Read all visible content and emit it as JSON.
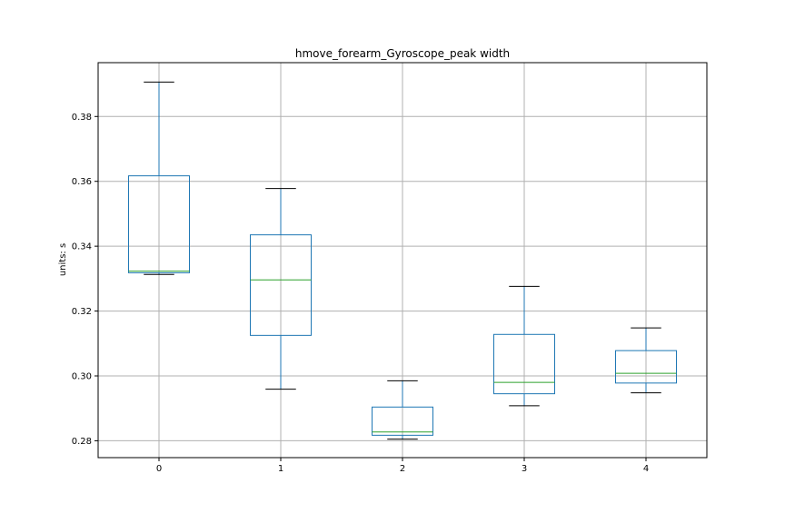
{
  "chart_data": {
    "type": "box",
    "title": "hmove_forearm_Gyroscope_peak width",
    "xlabel": "",
    "ylabel": "units: s",
    "categories": [
      "0",
      "1",
      "2",
      "3",
      "4"
    ],
    "yticks": [
      "0.28",
      "0.30",
      "0.32",
      "0.34",
      "0.36",
      "0.38"
    ],
    "ylim": [
      0.2748,
      0.3966
    ],
    "grid": true,
    "boxes": [
      {
        "category": "0",
        "whisker_low": 0.3313,
        "q1": 0.3318,
        "median": 0.3323,
        "q3": 0.3617,
        "whisker_high": 0.3906
      },
      {
        "category": "1",
        "whisker_low": 0.2959,
        "q1": 0.3125,
        "median": 0.3296,
        "q3": 0.3435,
        "whisker_high": 0.3578
      },
      {
        "category": "2",
        "whisker_low": 0.2805,
        "q1": 0.2817,
        "median": 0.2827,
        "q3": 0.2904,
        "whisker_high": 0.2985
      },
      {
        "category": "3",
        "whisker_low": 0.2908,
        "q1": 0.2945,
        "median": 0.298,
        "q3": 0.3128,
        "whisker_high": 0.3276
      },
      {
        "category": "4",
        "whisker_low": 0.2948,
        "q1": 0.2978,
        "median": 0.3008,
        "q3": 0.3078,
        "whisker_high": 0.3148
      }
    ],
    "colors": {
      "box": "#1f77b4",
      "median": "#2ca02c",
      "whisker_cap": "#000000",
      "grid": "#b0b0b0",
      "frame": "#000000"
    }
  }
}
